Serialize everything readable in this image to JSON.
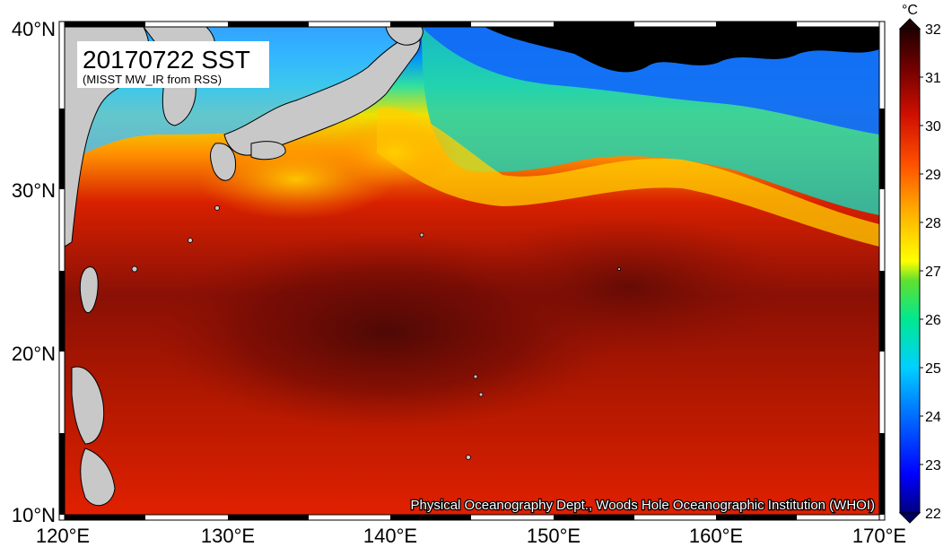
{
  "map": {
    "title": "20170722 SST",
    "subtitle": "(MISST MW_IR from RSS)",
    "credit": "Physical Oceanography Dept., Woods Hole Oceanographic Institution (WHOI)",
    "lon_labels": [
      "120°E",
      "130°E",
      "140°E",
      "150°E",
      "160°E",
      "170°E"
    ],
    "lat_labels": [
      "40°N",
      "30°N",
      "20°N",
      "10°N"
    ],
    "extent": {
      "lon": [
        120,
        170
      ],
      "lat": [
        10,
        40
      ]
    }
  },
  "colorbar": {
    "unit": "°C",
    "ticks": [
      "32",
      "31",
      "30",
      "29",
      "28",
      "27",
      "26",
      "25",
      "24",
      "23",
      "22"
    ],
    "range": [
      22,
      32
    ],
    "colors": [
      "#000080",
      "#0000ff",
      "#0080ff",
      "#00c8ff",
      "#00e0a0",
      "#40e040",
      "#ffff00",
      "#ffc000",
      "#ff8000",
      "#ff2000",
      "#b00000",
      "#200000"
    ]
  },
  "colors": {
    "land": "#c8c8c8",
    "warm_pool": "#6a0a05",
    "ocean_warm": "#c81a00",
    "ocean_mid": "#f0a000",
    "ocean_cool": "#40e060",
    "ocean_cold": "#0040ff",
    "missing": "#000000"
  }
}
